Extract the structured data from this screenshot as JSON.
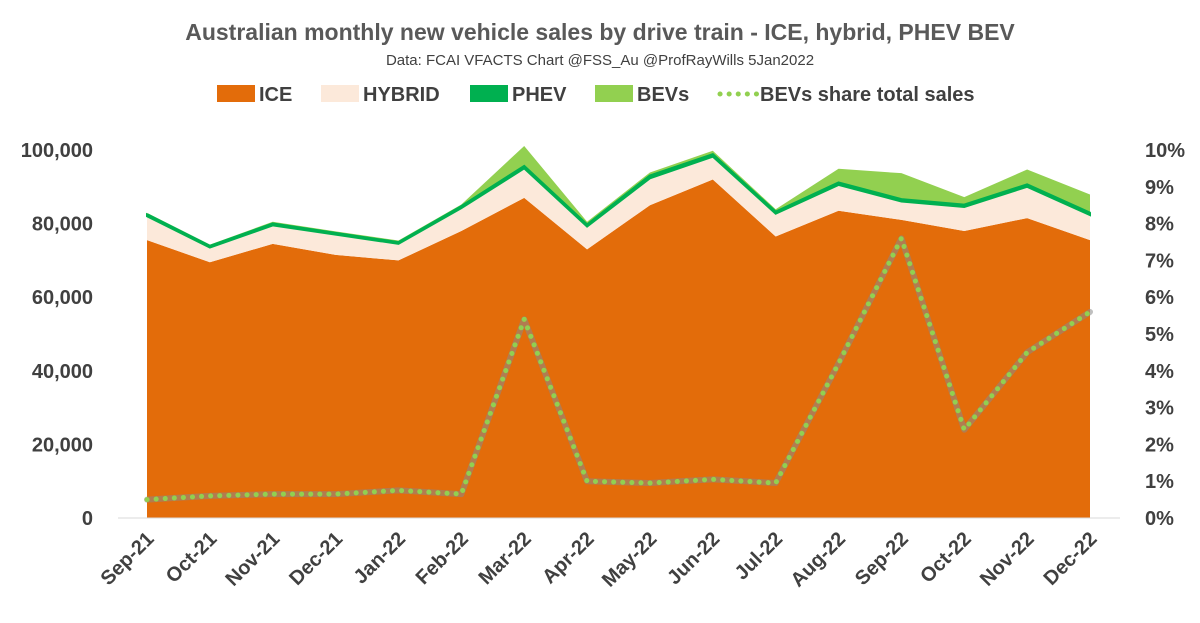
{
  "chart_data": {
    "type": "area",
    "title": "Australian monthly new vehicle sales by drive train - ICE, hybrid, PHEV  BEV",
    "subtitle": "Data: FCAI VFACTS  Chart @FSS_Au @ProfRayWills 5Jan2022",
    "categories": [
      "Sep-21",
      "Oct-21",
      "Nov-21",
      "Dec-21",
      "Jan-22",
      "Feb-22",
      "Mar-22",
      "Apr-22",
      "May-22",
      "Jun-22",
      "Jul-22",
      "Aug-22",
      "Sep-22",
      "Oct-22",
      "Nov-22",
      "Dec-22"
    ],
    "series": [
      {
        "name": "ICE",
        "stacked": true,
        "color": "#E36C0A",
        "values": [
          75500,
          69500,
          74500,
          71500,
          70000,
          78000,
          87000,
          73000,
          85000,
          92000,
          76500,
          83500,
          81000,
          78000,
          81500,
          75500
        ]
      },
      {
        "name": "HYBRID",
        "stacked": true,
        "color": "#FCE9DA",
        "values": [
          6500,
          4000,
          5000,
          5500,
          4500,
          6200,
          8000,
          6200,
          7300,
          6200,
          6200,
          7000,
          5000,
          6500,
          8500,
          6800
        ]
      },
      {
        "name": "PHEV",
        "stacked": true,
        "color": "#00B050",
        "values": [
          500,
          400,
          500,
          400,
          400,
          500,
          600,
          500,
          700,
          600,
          500,
          600,
          600,
          600,
          600,
          600
        ]
      },
      {
        "name": "BEVs",
        "stacked": true,
        "color": "#92D050",
        "values": [
          400,
          400,
          500,
          500,
          500,
          500,
          5500,
          800,
          900,
          1000,
          700,
          3800,
          7100,
          2100,
          4100,
          5000
        ]
      },
      {
        "name": "BEVs share total sales",
        "axis": "right",
        "line_style": "dotted",
        "color": "#92D050",
        "values": [
          0.5,
          0.6,
          0.65,
          0.65,
          0.75,
          0.65,
          5.4,
          1.0,
          0.95,
          1.05,
          0.95,
          4.2,
          7.6,
          2.4,
          4.5,
          5.6
        ]
      }
    ],
    "y_left": {
      "min": 0,
      "max": 100000,
      "step": 20000,
      "ticks": [
        "0",
        "20,000",
        "40,000",
        "60,000",
        "80,000",
        "100,000"
      ]
    },
    "y_right": {
      "min": 0,
      "max": 10,
      "step": 1,
      "ticks": [
        "0%",
        "1%",
        "2%",
        "3%",
        "4%",
        "5%",
        "6%",
        "7%",
        "8%",
        "9%",
        "10%"
      ]
    },
    "legend_position": "top",
    "grid": false
  }
}
